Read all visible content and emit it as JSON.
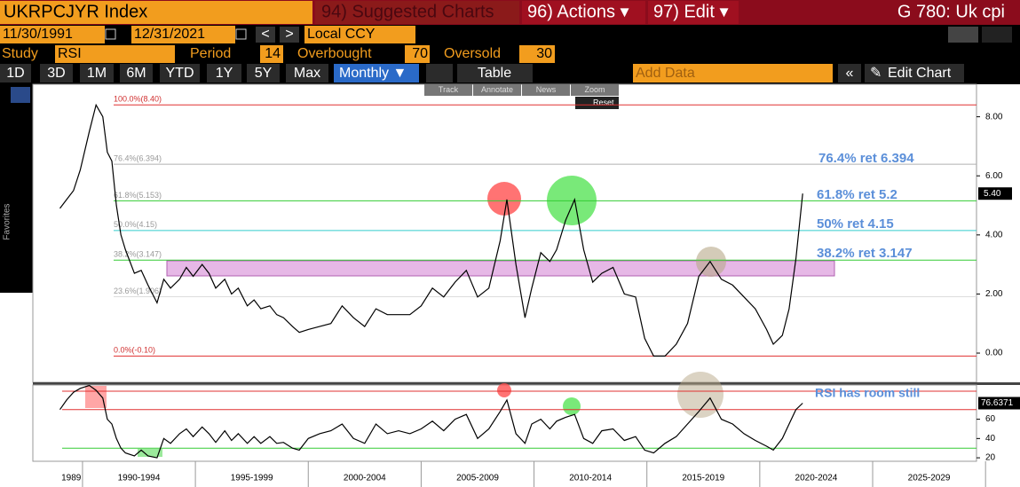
{
  "header": {
    "security": "UKRPCJYR Index",
    "suggested": "94) Suggested Charts",
    "actions": "96) Actions ▾",
    "edit": "97) Edit ▾",
    "page": "G 780: Uk cpi"
  },
  "range": {
    "start": "11/30/1991",
    "end": "12/31/2021",
    "currency": "Local CCY"
  },
  "study": {
    "label": "Study",
    "name": "RSI",
    "period_label": "Period",
    "period": 14,
    "overbought_label": "Overbought",
    "overbought": 70,
    "oversold_label": "Oversold",
    "oversold": 30
  },
  "toolbar": {
    "buttons": [
      "1D",
      "3D",
      "1M",
      "6M",
      "YTD",
      "1Y",
      "5Y",
      "Max"
    ],
    "frequency": "Monthly ▼",
    "table": "Table",
    "add_data": "Add Data",
    "edit_chart": "Edit Chart"
  },
  "chart_tools": [
    "Track",
    "Annotate",
    "News",
    "Zoom"
  ],
  "reset": "Reset",
  "side_label": "Favorites",
  "periods": [
    "1989",
    "1990-1994",
    "1995-1999",
    "2000-2004",
    "2005-2009",
    "2010-2014",
    "2015-2019",
    "2020-2024",
    "2025-2029"
  ],
  "chart": {
    "type": "line",
    "color": "#000000",
    "x": [
      1989.0,
      1989.3,
      1989.6,
      1989.9,
      1990.3,
      1990.6,
      1990.9,
      1991.1,
      1991.3,
      1991.5,
      1991.7,
      1991.9,
      1992.3,
      1992.6,
      1992.9,
      1993.3,
      1993.6,
      1993.9,
      1994.3,
      1994.6,
      1994.9,
      1995.3,
      1995.6,
      1995.9,
      1996.3,
      1996.6,
      1996.9,
      1997.3,
      1997.6,
      1997.9,
      1998.3,
      1998.6,
      1998.9,
      1999.3,
      1999.6,
      2000.0,
      2000.5,
      2001.0,
      2001.5,
      2002.0,
      2002.5,
      2003.0,
      2003.5,
      2004.0,
      2004.5,
      2005.0,
      2005.5,
      2006.0,
      2006.5,
      2007.0,
      2007.5,
      2008.0,
      2008.5,
      2008.8,
      2009.2,
      2009.6,
      2009.9,
      2010.3,
      2010.7,
      2011.0,
      2011.4,
      2011.8,
      2012.2,
      2012.6,
      2013.0,
      2013.5,
      2014.0,
      2014.5,
      2014.9,
      2015.3,
      2015.8,
      2016.3,
      2016.8,
      2017.3,
      2017.8,
      2018.3,
      2018.8,
      2019.3,
      2019.8,
      2020.3,
      2020.6,
      2021.0,
      2021.3,
      2021.6,
      2021.9
    ],
    "values": [
      4.9,
      5.2,
      5.5,
      6.2,
      7.5,
      8.4,
      8.0,
      6.8,
      6.5,
      5.0,
      4.0,
      3.5,
      2.7,
      2.8,
      2.3,
      1.7,
      2.5,
      2.2,
      2.5,
      2.9,
      2.6,
      3.0,
      2.7,
      2.2,
      2.5,
      2.0,
      2.2,
      1.6,
      1.8,
      1.5,
      1.6,
      1.3,
      1.2,
      0.9,
      0.7,
      0.8,
      0.9,
      1.0,
      1.6,
      1.2,
      0.9,
      1.5,
      1.3,
      1.3,
      1.3,
      1.6,
      2.2,
      1.9,
      2.4,
      2.8,
      1.9,
      2.2,
      3.8,
      5.2,
      3.0,
      1.2,
      2.2,
      3.4,
      3.1,
      3.5,
      4.5,
      5.2,
      3.5,
      2.4,
      2.7,
      2.9,
      2.0,
      1.9,
      0.5,
      -0.1,
      -0.1,
      0.3,
      1.0,
      2.6,
      3.1,
      2.5,
      2.3,
      1.9,
      1.5,
      0.8,
      0.3,
      0.6,
      1.5,
      3.2,
      5.4
    ],
    "last_value_label": "5.40",
    "xlim": [
      1987.8,
      2029.6
    ],
    "ylim": [
      -0.96,
      9.1
    ],
    "yticks": [
      {
        "value": 0,
        "label": "0.00"
      },
      {
        "value": 2,
        "label": "2.00"
      },
      {
        "value": 4,
        "label": "4.00"
      },
      {
        "value": 6,
        "label": "6.00"
      },
      {
        "value": 8,
        "label": "8.00"
      }
    ],
    "fib_levels": [
      {
        "label": "100.0%(8.40)",
        "value": 8.4,
        "color": "#e03030"
      },
      {
        "label": "76.4%(6.394)",
        "value": 6.394,
        "color": "#b0b0b0"
      },
      {
        "label": "61.8%(5.153)",
        "value": 5.153,
        "color": "#33cc33"
      },
      {
        "label": "50.0%(4.15)",
        "value": 4.15,
        "color": "#33cccc"
      },
      {
        "label": "38.2%(3.147)",
        "value": 3.147,
        "color": "#33cc33"
      },
      {
        "label": "23.6%(1.906)",
        "value": 1.906,
        "color": "#dddddd"
      },
      {
        "label": "0.0%(-0.10)",
        "value": -0.1,
        "color": "#e03030"
      }
    ],
    "annotations": [
      "76.4% ret 6.394",
      "61.8% ret 5.2",
      "50% ret 4.15",
      "38.2% ret 3.147"
    ]
  },
  "rsi": {
    "type": "line",
    "color": "#000000",
    "ylim": [
      16.4,
      95.5
    ],
    "yticks": [
      20,
      40,
      60
    ],
    "values": [
      70,
      80,
      88,
      92,
      95,
      90,
      82,
      60,
      55,
      40,
      30,
      25,
      22,
      28,
      22,
      20,
      40,
      35,
      45,
      50,
      42,
      52,
      45,
      36,
      48,
      38,
      45,
      35,
      42,
      35,
      42,
      35,
      36,
      30,
      28,
      40,
      45,
      48,
      55,
      40,
      35,
      55,
      45,
      48,
      45,
      50,
      58,
      48,
      60,
      65,
      40,
      50,
      68,
      80,
      45,
      35,
      55,
      60,
      50,
      58,
      62,
      65,
      40,
      35,
      48,
      50,
      38,
      42,
      28,
      25,
      35,
      42,
      55,
      68,
      82,
      60,
      55,
      45,
      38,
      32,
      28,
      40,
      55,
      70,
      76.6371
    ],
    "annotation": "RSI has room still"
  }
}
